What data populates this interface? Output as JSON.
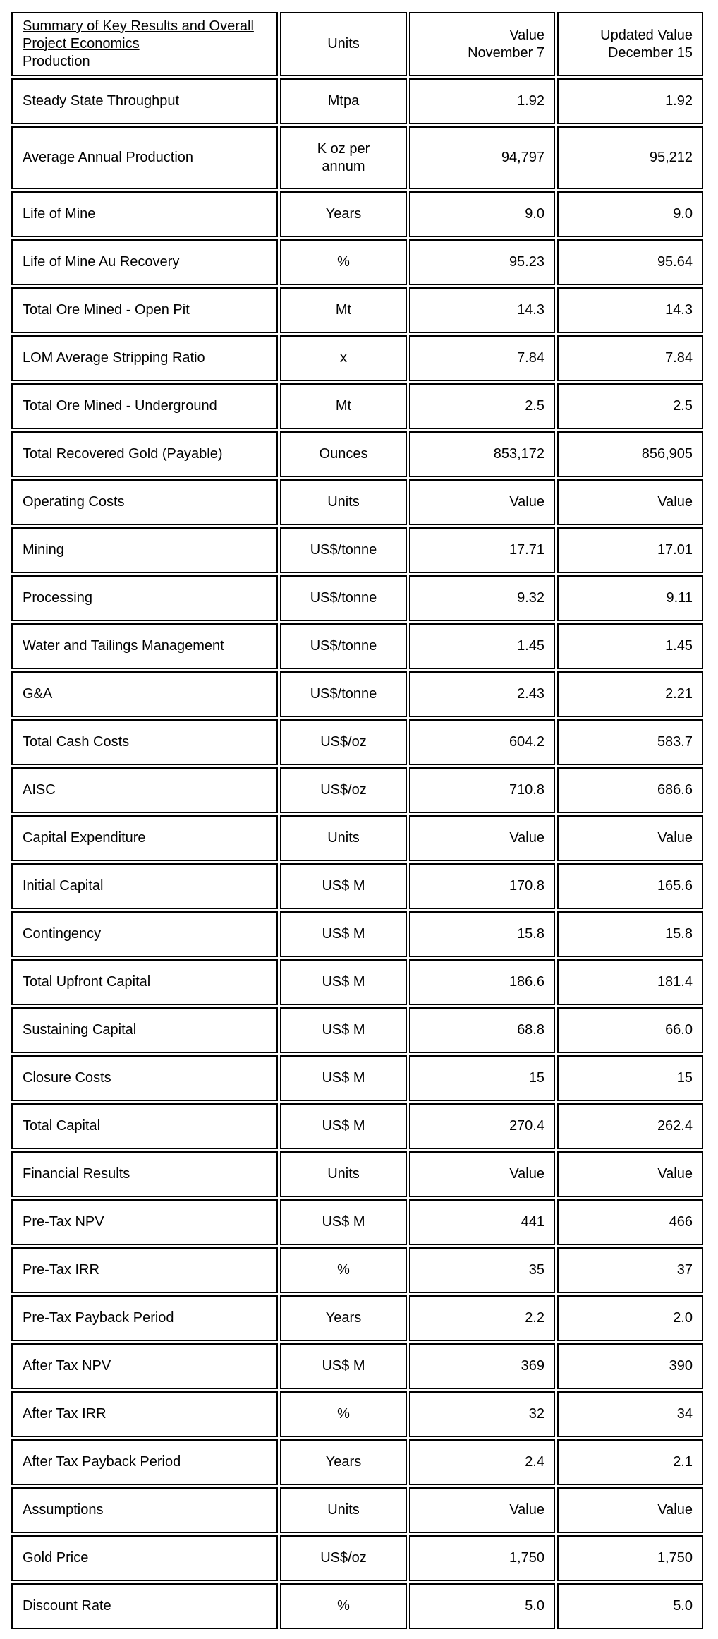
{
  "table": {
    "header": {
      "title_underlined": "Summary of Key Results and Overall Project Economics",
      "title_sub": "Production",
      "col_units": "Units",
      "col_value_nov7": "Value\nNovember 7",
      "col_value_dec15": "Updated Value\nDecember 15"
    },
    "rows": [
      {
        "label": "Steady State Throughput",
        "unit": "Mtpa",
        "v1": "1.92",
        "v2": "1.92"
      },
      {
        "label": "Average Annual Production",
        "unit": "K oz per annum",
        "v1": "94,797",
        "v2": "95,212",
        "tall": true
      },
      {
        "label": "Life of Mine",
        "unit": "Years",
        "v1": "9.0",
        "v2": "9.0"
      },
      {
        "label": "Life of Mine Au Recovery",
        "unit": "%",
        "v1": "95.23",
        "v2": "95.64"
      },
      {
        "label": "Total Ore Mined - Open Pit",
        "unit": "Mt",
        "v1": "14.3",
        "v2": "14.3"
      },
      {
        "label": "LOM Average Stripping Ratio",
        "unit": "x",
        "v1": "7.84",
        "v2": "7.84"
      },
      {
        "label": "Total Ore Mined - Underground",
        "unit": "Mt",
        "v1": "2.5",
        "v2": "2.5"
      },
      {
        "label": "Total Recovered Gold (Payable)",
        "unit": "Ounces",
        "v1": "853,172",
        "v2": "856,905"
      },
      {
        "label": "Operating Costs",
        "unit": "Units",
        "v1": "Value",
        "v2": "Value",
        "bold": [
          true,
          true,
          true,
          true
        ]
      },
      {
        "label": "Mining",
        "unit": "US$/tonne",
        "v1": "17.71",
        "v2": "17.01"
      },
      {
        "label": "Processing",
        "unit": "US$/tonne",
        "v1": "9.32",
        "v2": "9.11"
      },
      {
        "label": "Water and Tailings Management",
        "unit": "US$/tonne",
        "v1": "1.45",
        "v2": "1.45"
      },
      {
        "label": "G&A",
        "unit": "US$/tonne",
        "v1": "2.43",
        "v2": "2.21"
      },
      {
        "label": "Total Cash Costs",
        "unit": "US$/oz",
        "v1": "604.2",
        "v2": "583.7"
      },
      {
        "label": "AISC",
        "unit": "US$/oz",
        "v1": "710.8",
        "v2": "686.6",
        "bold": [
          true,
          true,
          true,
          true
        ]
      },
      {
        "label": "Capital Expenditure",
        "unit": "Units",
        "v1": "Value",
        "v2": "Value",
        "bold": [
          true,
          true,
          true,
          true
        ]
      },
      {
        "label": "Initial Capital",
        "unit": "US$ M",
        "v1": "170.8",
        "v2": "165.6"
      },
      {
        "label": "Contingency",
        "unit": "US$ M",
        "v1": "15.8",
        "v2": "15.8"
      },
      {
        "label": "Total Upfront Capital",
        "unit": "US$ M",
        "v1": "186.6",
        "v2": "181.4"
      },
      {
        "label": "Sustaining Capital",
        "unit": "US$ M",
        "v1": "68.8",
        "v2": "66.0"
      },
      {
        "label": "Closure Costs",
        "unit": "US$ M",
        "v1": "15",
        "v2": "15"
      },
      {
        "label": "Total Capital",
        "unit": "US$ M",
        "v1": "270.4",
        "v2": "262.4",
        "bold": [
          true,
          true,
          true,
          true
        ]
      },
      {
        "label": "Financial Results",
        "unit": "Units",
        "v1": "Value",
        "v2": "Value",
        "bold": [
          true,
          true,
          true,
          true
        ]
      },
      {
        "label": "Pre-Tax NPV",
        "unit": "US$ M",
        "v1": "441",
        "v2": "466"
      },
      {
        "label": "Pre-Tax IRR",
        "unit": "%",
        "v1": "35",
        "v2": "37"
      },
      {
        "label": "Pre-Tax Payback Period",
        "unit": "Years",
        "v1": "2.2",
        "v2": "2.0"
      },
      {
        "label": "After Tax NPV",
        "unit": "US$ M",
        "v1": "369",
        "v2": "390",
        "bold": [
          true,
          true,
          true,
          false
        ]
      },
      {
        "label": "After Tax IRR",
        "unit": "%",
        "v1": "32",
        "v2": "34",
        "bold": [
          true,
          true,
          true,
          false
        ]
      },
      {
        "label": "After Tax Payback Period",
        "unit": "Years",
        "v1": "2.4",
        "v2": "2.1"
      },
      {
        "label": "Assumptions",
        "unit": "Units",
        "v1": "Value",
        "v2": "Value",
        "bold": [
          true,
          true,
          true,
          true
        ]
      },
      {
        "label": "Gold Price",
        "unit": "US$/oz",
        "v1": "1,750",
        "v2": "1,750"
      },
      {
        "label": "Discount Rate",
        "unit": "%",
        "v1": "5.0",
        "v2": "5.0"
      }
    ]
  }
}
